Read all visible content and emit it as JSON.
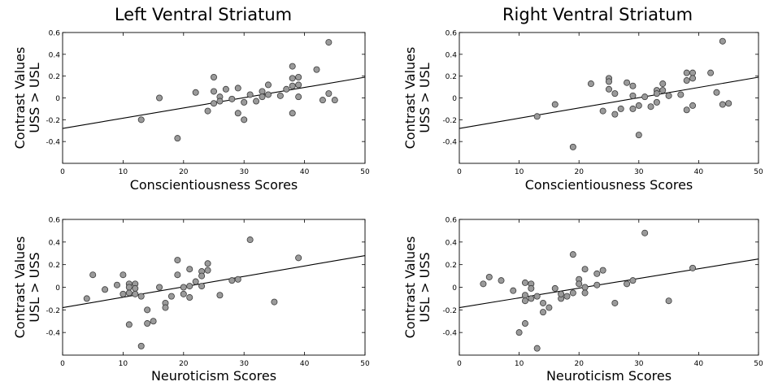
{
  "column_titles": [
    "Left Ventral Striatum",
    "Right Ventral Striatum"
  ],
  "chart_data": [
    {
      "type": "scatter",
      "title": "Left Ventral Striatum",
      "xlabel": "Conscientiousness Scores",
      "ylabel": [
        "Contrast Values",
        "USS > USL"
      ],
      "xlim": [
        0,
        50
      ],
      "ylim": [
        -0.6,
        0.6
      ],
      "xticks": [
        "0",
        "10",
        "20",
        "30",
        "40",
        "50"
      ],
      "yticks": [
        "-0.4",
        "-0.2",
        "0",
        "0.2",
        "0.4",
        "0.6"
      ],
      "grid": false,
      "trendline": {
        "x": [
          0,
          50
        ],
        "y": [
          -0.28,
          0.19
        ]
      },
      "points": [
        {
          "x": 13,
          "y": -0.2
        },
        {
          "x": 16,
          "y": 0.0
        },
        {
          "x": 19,
          "y": -0.37
        },
        {
          "x": 22,
          "y": 0.05
        },
        {
          "x": 24,
          "y": -0.12
        },
        {
          "x": 25,
          "y": 0.19
        },
        {
          "x": 25,
          "y": 0.06
        },
        {
          "x": 25,
          "y": -0.05
        },
        {
          "x": 26,
          "y": 0.01
        },
        {
          "x": 26,
          "y": -0.03
        },
        {
          "x": 27,
          "y": 0.08
        },
        {
          "x": 28,
          "y": -0.01
        },
        {
          "x": 29,
          "y": 0.09
        },
        {
          "x": 29,
          "y": -0.14
        },
        {
          "x": 30,
          "y": -0.2
        },
        {
          "x": 30,
          "y": -0.04
        },
        {
          "x": 31,
          "y": 0.03
        },
        {
          "x": 32,
          "y": -0.03
        },
        {
          "x": 33,
          "y": 0.06
        },
        {
          "x": 33,
          "y": 0.01
        },
        {
          "x": 34,
          "y": 0.12
        },
        {
          "x": 34,
          "y": 0.03
        },
        {
          "x": 36,
          "y": 0.02
        },
        {
          "x": 37,
          "y": 0.08
        },
        {
          "x": 38,
          "y": 0.29
        },
        {
          "x": 38,
          "y": 0.18
        },
        {
          "x": 38,
          "y": 0.11
        },
        {
          "x": 38,
          "y": -0.14
        },
        {
          "x": 39,
          "y": 0.19
        },
        {
          "x": 39,
          "y": 0.12
        },
        {
          "x": 39,
          "y": 0.01
        },
        {
          "x": 42,
          "y": 0.26
        },
        {
          "x": 43,
          "y": -0.02
        },
        {
          "x": 44,
          "y": 0.51
        },
        {
          "x": 44,
          "y": 0.04
        },
        {
          "x": 45,
          "y": -0.02
        }
      ]
    },
    {
      "type": "scatter",
      "title": "Right Ventral Striatum",
      "xlabel": "Conscientiousness Scores",
      "ylabel": [
        "Contrast Values",
        "USS > USL"
      ],
      "xlim": [
        0,
        50
      ],
      "ylim": [
        -0.6,
        0.6
      ],
      "xticks": [
        "0",
        "10",
        "20",
        "30",
        "40",
        "50"
      ],
      "yticks": [
        "-0.4",
        "-0.2",
        "0",
        "0.2",
        "0.4",
        "0.6"
      ],
      "grid": false,
      "trendline": {
        "x": [
          0,
          50
        ],
        "y": [
          -0.28,
          0.19
        ]
      },
      "points": [
        {
          "x": 13,
          "y": -0.17
        },
        {
          "x": 16,
          "y": -0.06
        },
        {
          "x": 19,
          "y": -0.45
        },
        {
          "x": 22,
          "y": 0.13
        },
        {
          "x": 24,
          "y": -0.12
        },
        {
          "x": 25,
          "y": 0.18
        },
        {
          "x": 25,
          "y": 0.15
        },
        {
          "x": 25,
          "y": 0.08
        },
        {
          "x": 26,
          "y": 0.04
        },
        {
          "x": 26,
          "y": -0.15
        },
        {
          "x": 27,
          "y": -0.1
        },
        {
          "x": 28,
          "y": 0.14
        },
        {
          "x": 29,
          "y": 0.11
        },
        {
          "x": 29,
          "y": 0.02
        },
        {
          "x": 29,
          "y": -0.1
        },
        {
          "x": 30,
          "y": -0.34
        },
        {
          "x": 30,
          "y": -0.07
        },
        {
          "x": 31,
          "y": 0.01
        },
        {
          "x": 32,
          "y": -0.08
        },
        {
          "x": 33,
          "y": 0.07
        },
        {
          "x": 33,
          "y": 0.04
        },
        {
          "x": 33,
          "y": -0.04
        },
        {
          "x": 34,
          "y": 0.13
        },
        {
          "x": 34,
          "y": 0.07
        },
        {
          "x": 35,
          "y": 0.02
        },
        {
          "x": 37,
          "y": 0.03
        },
        {
          "x": 38,
          "y": 0.23
        },
        {
          "x": 38,
          "y": 0.16
        },
        {
          "x": 38,
          "y": -0.11
        },
        {
          "x": 39,
          "y": 0.23
        },
        {
          "x": 39,
          "y": 0.18
        },
        {
          "x": 39,
          "y": -0.07
        },
        {
          "x": 42,
          "y": 0.23
        },
        {
          "x": 43,
          "y": 0.05
        },
        {
          "x": 44,
          "y": 0.52
        },
        {
          "x": 44,
          "y": -0.06
        },
        {
          "x": 45,
          "y": -0.05
        }
      ]
    },
    {
      "type": "scatter",
      "title": "",
      "xlabel": "Neuroticism Scores",
      "ylabel": [
        "Contrast Values",
        "USL > USS"
      ],
      "xlim": [
        0,
        50
      ],
      "ylim": [
        -0.6,
        0.6
      ],
      "xticks": [
        "0",
        "10",
        "20",
        "30",
        "40",
        "50"
      ],
      "yticks": [
        "-0.4",
        "-0.2",
        "0",
        "0.2",
        "0.4",
        "0.6"
      ],
      "grid": false,
      "trendline": {
        "x": [
          0,
          50
        ],
        "y": [
          -0.18,
          0.28
        ]
      },
      "points": [
        {
          "x": 4,
          "y": -0.1
        },
        {
          "x": 5,
          "y": 0.11
        },
        {
          "x": 7,
          "y": -0.02
        },
        {
          "x": 9,
          "y": 0.02
        },
        {
          "x": 10,
          "y": 0.11
        },
        {
          "x": 10,
          "y": -0.06
        },
        {
          "x": 11,
          "y": 0.03
        },
        {
          "x": 11,
          "y": 0.0
        },
        {
          "x": 11,
          "y": -0.05
        },
        {
          "x": 11,
          "y": -0.33
        },
        {
          "x": 12,
          "y": 0.03
        },
        {
          "x": 12,
          "y": -0.01
        },
        {
          "x": 12,
          "y": -0.06
        },
        {
          "x": 13,
          "y": -0.08
        },
        {
          "x": 13,
          "y": -0.52
        },
        {
          "x": 14,
          "y": -0.2
        },
        {
          "x": 14,
          "y": -0.32
        },
        {
          "x": 15,
          "y": -0.3
        },
        {
          "x": 16,
          "y": 0.0
        },
        {
          "x": 17,
          "y": -0.14
        },
        {
          "x": 17,
          "y": -0.18
        },
        {
          "x": 18,
          "y": -0.08
        },
        {
          "x": 19,
          "y": 0.24
        },
        {
          "x": 19,
          "y": 0.11
        },
        {
          "x": 20,
          "y": 0.0
        },
        {
          "x": 20,
          "y": -0.06
        },
        {
          "x": 21,
          "y": 0.16
        },
        {
          "x": 21,
          "y": 0.01
        },
        {
          "x": 21,
          "y": -0.09
        },
        {
          "x": 22,
          "y": 0.05
        },
        {
          "x": 23,
          "y": 0.14
        },
        {
          "x": 23,
          "y": 0.1
        },
        {
          "x": 23,
          "y": 0.01
        },
        {
          "x": 24,
          "y": 0.21
        },
        {
          "x": 24,
          "y": 0.15
        },
        {
          "x": 26,
          "y": -0.07
        },
        {
          "x": 28,
          "y": 0.06
        },
        {
          "x": 29,
          "y": 0.07
        },
        {
          "x": 31,
          "y": 0.42
        },
        {
          "x": 35,
          "y": -0.13
        },
        {
          "x": 39,
          "y": 0.26
        }
      ]
    },
    {
      "type": "scatter",
      "title": "",
      "xlabel": "Neuroticism Scores",
      "ylabel": [
        "Contrast Values",
        "USL > USS"
      ],
      "xlim": [
        0,
        50
      ],
      "ylim": [
        -0.6,
        0.6
      ],
      "xticks": [
        "0",
        "10",
        "20",
        "30",
        "40",
        "50"
      ],
      "yticks": [
        "-0.4",
        "-0.2",
        "0",
        "0.2",
        "0.4",
        "0.6"
      ],
      "grid": false,
      "trendline": {
        "x": [
          0,
          50
        ],
        "y": [
          -0.18,
          0.25
        ]
      },
      "points": [
        {
          "x": 4,
          "y": 0.03
        },
        {
          "x": 5,
          "y": 0.09
        },
        {
          "x": 7,
          "y": 0.06
        },
        {
          "x": 9,
          "y": -0.03
        },
        {
          "x": 10,
          "y": -0.4
        },
        {
          "x": 11,
          "y": 0.04
        },
        {
          "x": 11,
          "y": -0.07
        },
        {
          "x": 11,
          "y": -0.12
        },
        {
          "x": 11,
          "y": -0.32
        },
        {
          "x": 12,
          "y": 0.03
        },
        {
          "x": 12,
          "y": -0.01
        },
        {
          "x": 12,
          "y": -0.1
        },
        {
          "x": 13,
          "y": -0.08
        },
        {
          "x": 13,
          "y": -0.54
        },
        {
          "x": 14,
          "y": -0.14
        },
        {
          "x": 14,
          "y": -0.22
        },
        {
          "x": 15,
          "y": -0.18
        },
        {
          "x": 16,
          "y": -0.01
        },
        {
          "x": 17,
          "y": -0.1
        },
        {
          "x": 17,
          "y": -0.06
        },
        {
          "x": 18,
          "y": -0.08
        },
        {
          "x": 19,
          "y": 0.29
        },
        {
          "x": 19,
          "y": -0.05
        },
        {
          "x": 20,
          "y": 0.07
        },
        {
          "x": 20,
          "y": 0.03
        },
        {
          "x": 21,
          "y": 0.16
        },
        {
          "x": 21,
          "y": 0.0
        },
        {
          "x": 21,
          "y": -0.05
        },
        {
          "x": 23,
          "y": 0.12
        },
        {
          "x": 23,
          "y": 0.02
        },
        {
          "x": 24,
          "y": 0.15
        },
        {
          "x": 26,
          "y": -0.14
        },
        {
          "x": 28,
          "y": 0.03
        },
        {
          "x": 29,
          "y": 0.06
        },
        {
          "x": 31,
          "y": 0.48
        },
        {
          "x": 35,
          "y": -0.12
        },
        {
          "x": 39,
          "y": 0.17
        }
      ]
    }
  ],
  "style": {
    "marker_fill": "#9a9a9a",
    "marker_stroke": "#3a3a3a",
    "line_color": "#000000",
    "axis_color": "#000000"
  }
}
